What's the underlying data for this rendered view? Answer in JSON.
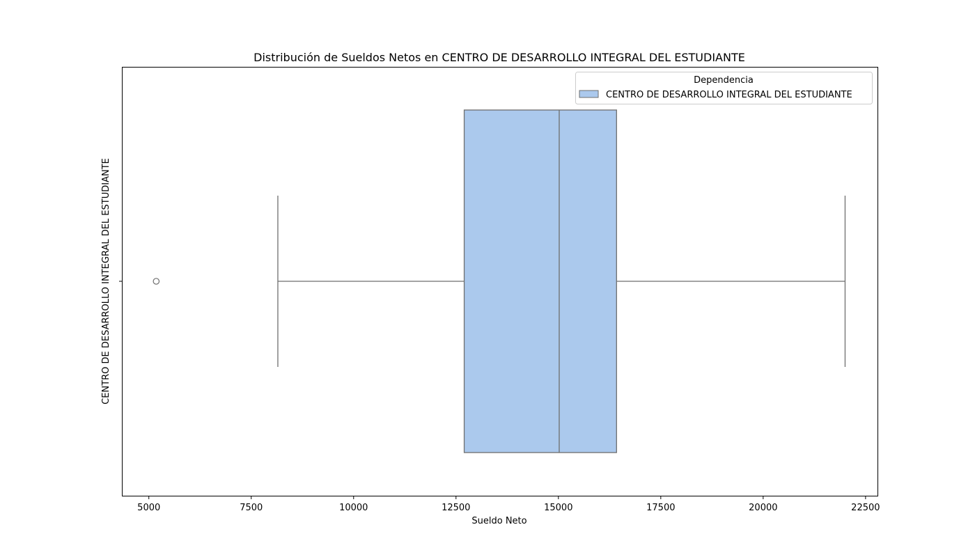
{
  "chart_data": {
    "type": "box",
    "title": "Distribución de Sueldos Netos en CENTRO DE DESARROLLO INTEGRAL DEL ESTUDIANTE",
    "xlabel": "Sueldo Neto",
    "ylabel": "CENTRO DE DESARROLLO INTEGRAL DEL ESTUDIANTE",
    "xlim": [
      4350,
      22800
    ],
    "xticks": [
      "5000",
      "7500",
      "10000",
      "12500",
      "15000",
      "17500",
      "20000",
      "22500"
    ],
    "orientation": "horizontal",
    "grid": false,
    "legend": {
      "title": "Dependencia",
      "placement": "top-right",
      "entries": [
        "CENTRO DE DESARROLLO INTEGRAL DEL ESTUDIANTE"
      ]
    },
    "series": [
      {
        "name": "CENTRO DE DESARROLLO INTEGRAL DEL ESTUDIANTE",
        "whisker_low": 8150,
        "q1": 12700,
        "median": 15020,
        "q3": 16420,
        "whisker_high": 22000,
        "outliers": [
          5180
        ]
      }
    ],
    "colors": {
      "box_fill": "#abc9ed",
      "line": "#6e6e6e"
    }
  }
}
